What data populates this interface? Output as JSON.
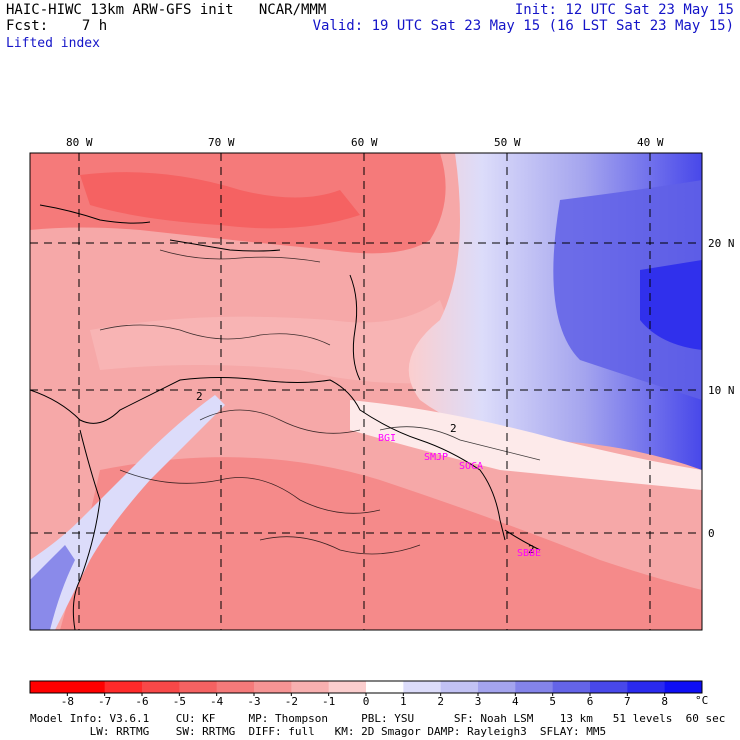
{
  "header": {
    "left_line1": "HAIC-HIWC 13km ARW-GFS init   NCAR/MMM",
    "left_line2": "Fcst:    7 h",
    "right_line1": "Init: 12 UTC Sat 23 May 15",
    "right_line2": "Valid: 19 UTC Sat 23 May 15 (16 LST Sat 23 May 15)",
    "field_name": "Lifted index"
  },
  "map": {
    "lon_labels": [
      "80 W",
      "70 W",
      "60 W",
      "50 W",
      "40 W"
    ],
    "lat_labels": [
      "20 N",
      "10 N",
      "0"
    ],
    "lon_values": [
      -80,
      -70,
      -60,
      -50,
      -40
    ],
    "lat_values": [
      20,
      10,
      0
    ],
    "contour_labels": [
      "2",
      "2",
      "2"
    ],
    "stations": [
      "BGI",
      "SMJP",
      "SOCA",
      "SBBE"
    ],
    "station_color": "#ff00ff"
  },
  "colorbar": {
    "ticks": [
      "-8",
      "-7",
      "-6",
      "-5",
      "-4",
      "-3",
      "-2",
      "-1",
      "0",
      "1",
      "2",
      "3",
      "4",
      "5",
      "6",
      "7",
      "8"
    ],
    "unit": "°C",
    "colors": [
      "#ff0000",
      "#ff2a2a",
      "#f84848",
      "#f56262",
      "#f57a7a",
      "#f69494",
      "#f8b0b0",
      "#fbcece",
      "#ffffff",
      "#dcdcfa",
      "#c2c2f4",
      "#a4a4ee",
      "#8484ea",
      "#6464e8",
      "#4848ea",
      "#2a2aef",
      "#0e0ef5"
    ]
  },
  "footer": {
    "line1": "Model Info: V3.6.1    CU: KF     MP: Thompson     PBL: YSU      SF: Noah LSM    13 km   51 levels  60 sec",
    "line2": "         LW: RRTMG    SW: RRTMG  DIFF: full   KM: 2D Smagor DAMP: Rayleigh3  SFLAY: MM5"
  }
}
